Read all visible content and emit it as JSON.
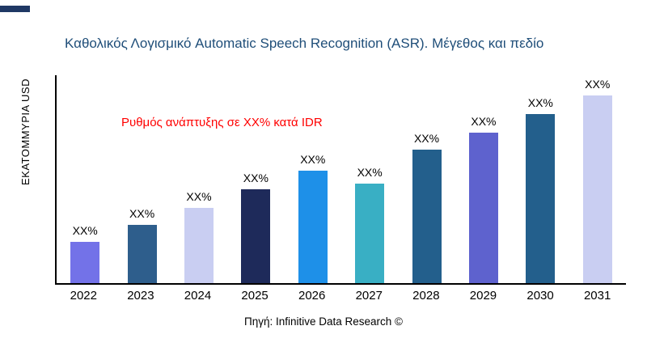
{
  "accent_color": "#1f3864",
  "title": "Καθολικός Λογισμικό Automatic Speech Recognition (ASR). Μέγεθος και πεδίο",
  "y_axis_label": "ΕΚΑΤΟΜΜΥΡΙΑ USD",
  "annotation": "Ρυθμός ανάπτυξης σε XX% κατά IDR",
  "annotation_color": "#ff0000",
  "footer": "Πηγή: Infinitive Data Research ©",
  "chart_data": {
    "type": "bar",
    "title": "Καθολικός Λογισμικό Automatic Speech Recognition (ASR). Μέγεθος και πεδίο",
    "xlabel": "",
    "ylabel": "ΕΚΑΤΟΜΜΥΡΙΑ USD",
    "categories": [
      "2022",
      "2023",
      "2024",
      "2025",
      "2026",
      "2027",
      "2028",
      "2029",
      "2030",
      "2031"
    ],
    "values": [
      22,
      31,
      40,
      50,
      60,
      53,
      71,
      80,
      90,
      100
    ],
    "values_note": "relative heights estimated from pixels; numeric values are masked as XX% in the image",
    "bar_labels": [
      "XX%",
      "XX%",
      "XX%",
      "XX%",
      "XX%",
      "XX%",
      "XX%",
      "XX%",
      "XX%",
      "XX%"
    ],
    "bar_colors": [
      "#7372e8",
      "#2e5e8c",
      "#c9cef2",
      "#1e2a5a",
      "#1e90e8",
      "#39afc4",
      "#235f8c",
      "#5e62ce",
      "#235f8c",
      "#c9cef2"
    ],
    "ylim": [
      0,
      100
    ],
    "grid": false,
    "legend": false,
    "annotation": "Ρυθμός ανάπτυξης σε XX% κατά IDR"
  }
}
